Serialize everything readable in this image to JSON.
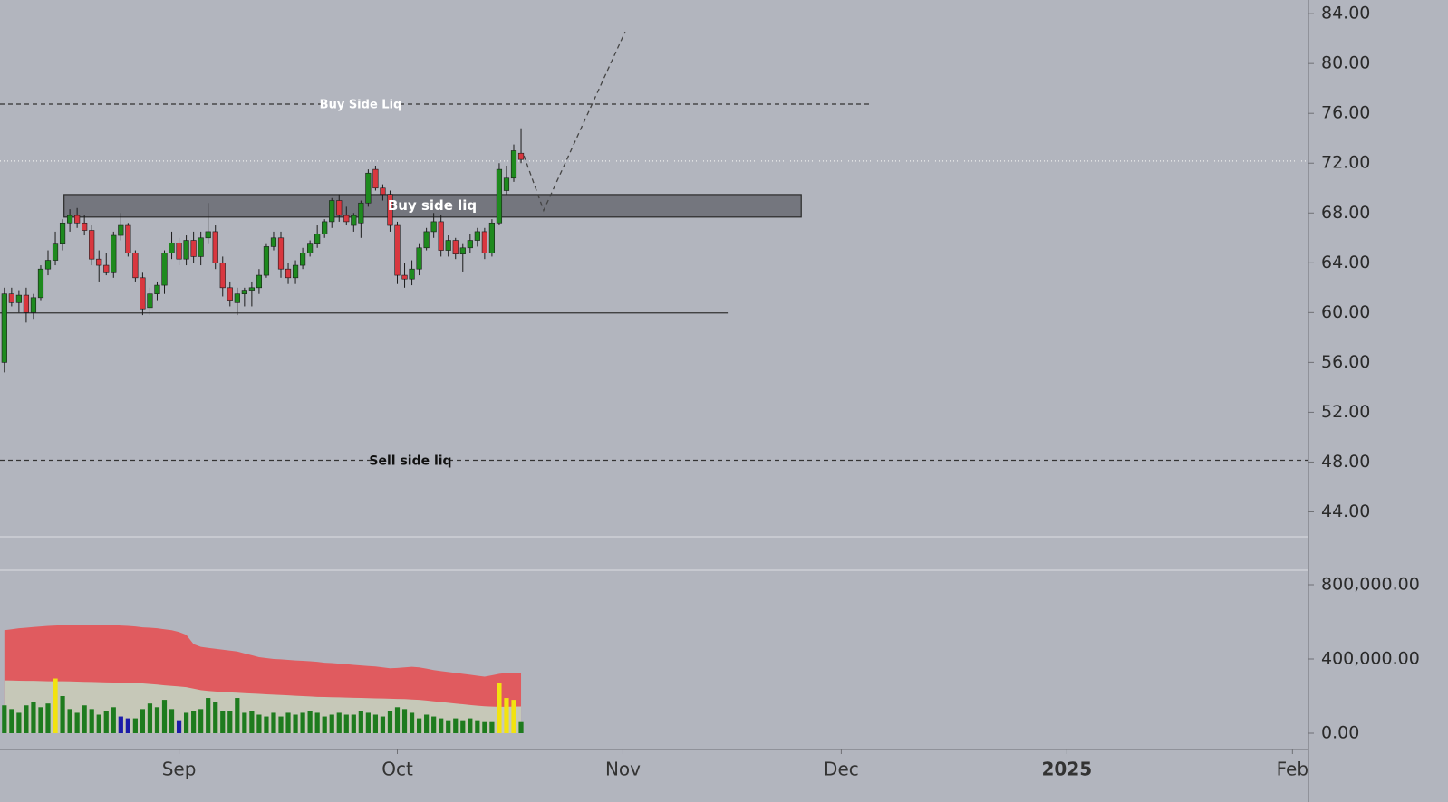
{
  "chart_data": [
    {
      "type": "candlestick",
      "up_color": "#1e8a1e",
      "down_color": "#d9373f",
      "xlim": [
        -0.6,
        179.2
      ],
      "xticks": [
        {
          "value": 24,
          "label": "Sep"
        },
        {
          "value": 54,
          "label": "Oct"
        },
        {
          "value": 85,
          "label": "Nov"
        },
        {
          "value": 115,
          "label": "Dec"
        },
        {
          "value": 146,
          "label": "2025"
        },
        {
          "value": 177,
          "label": "Feb"
        }
      ],
      "ylim": [
        42,
        85.1
      ],
      "yticks": [
        {
          "value": 84,
          "label": "84.00"
        },
        {
          "value": 80,
          "label": "80.00"
        },
        {
          "value": 76,
          "label": "76.00"
        },
        {
          "value": 72,
          "label": "72.00"
        },
        {
          "value": 68,
          "label": "68.00"
        },
        {
          "value": 64,
          "label": "64.00"
        },
        {
          "value": 60,
          "label": "60.00"
        },
        {
          "value": 56,
          "label": "56.00"
        },
        {
          "value": 52,
          "label": "52.00"
        },
        {
          "value": 48,
          "label": "48.00"
        },
        {
          "value": 44,
          "label": "44.00"
        }
      ],
      "open": [
        56,
        61.5,
        60.8,
        61.4,
        60,
        61.2,
        63.5,
        64.2,
        65.5,
        67.2,
        67.8,
        67.2,
        66.6,
        64.3,
        63.8,
        63.2,
        66.2,
        67,
        64.8,
        62.8,
        60.4,
        61.5,
        62.2,
        64.8,
        65.6,
        64.3,
        65.8,
        64.5,
        66,
        66.5,
        64,
        62,
        60.8,
        61.5,
        61.8,
        62,
        63,
        65.3,
        66,
        63.5,
        62.8,
        63.8,
        64.8,
        65.5,
        66.3,
        67.3,
        69,
        67.8,
        67,
        67.2,
        68.8,
        71.5,
        70,
        69.5,
        67,
        63,
        62.7,
        63.5,
        65.2,
        66.5,
        67.3,
        65,
        65.8,
        64.7,
        65.2,
        65.8,
        66.5,
        64.8,
        67.2,
        69.8,
        70.8,
        72.8
      ],
      "high": [
        62,
        62,
        61.8,
        62,
        61.5,
        63.8,
        65,
        66.5,
        67.5,
        68.3,
        68.4,
        67.8,
        67,
        65,
        64.8,
        66.5,
        68,
        67.2,
        65,
        63.2,
        62,
        62.5,
        65,
        66.5,
        66,
        66.2,
        66.5,
        66.5,
        68.8,
        67,
        64.5,
        62.5,
        62,
        62,
        62.5,
        63.5,
        65.5,
        66.5,
        66.5,
        64,
        64.2,
        65.2,
        65.8,
        67,
        67.5,
        69.2,
        69.5,
        68.5,
        68,
        69,
        71.5,
        71.8,
        70.3,
        69.8,
        67.3,
        64,
        64.2,
        65.5,
        66.8,
        68,
        67.8,
        66.2,
        66,
        65.5,
        66.3,
        66.8,
        66.8,
        67.5,
        72,
        71.8,
        73.5,
        74.8
      ],
      "low": [
        55.2,
        60.5,
        60,
        59.2,
        59.5,
        61,
        63,
        63.8,
        65,
        66.5,
        66.8,
        66.2,
        63.8,
        62.5,
        63,
        62.8,
        65.8,
        64.5,
        62.5,
        59.8,
        59.8,
        61,
        61.5,
        64.3,
        63.8,
        63.8,
        64,
        63.8,
        65.5,
        63.5,
        61.3,
        60.5,
        59.8,
        60.5,
        60.5,
        61.5,
        62.8,
        65,
        62.8,
        62.3,
        62.3,
        63.5,
        64.5,
        65.2,
        66,
        66.8,
        67.3,
        67,
        66.5,
        66,
        68.5,
        69.8,
        69,
        66.5,
        62.3,
        62,
        62.2,
        63,
        65,
        66,
        64.5,
        64.5,
        64.3,
        63.3,
        64.8,
        65.3,
        64.3,
        64.5,
        67,
        69.5,
        70.5,
        72
      ],
      "close": [
        61.5,
        60.8,
        61.4,
        60,
        61.2,
        63.5,
        64.2,
        65.5,
        67.2,
        67.8,
        67.2,
        66.6,
        64.3,
        63.8,
        63.2,
        66.2,
        67,
        64.8,
        62.8,
        60.3,
        61.5,
        62.2,
        64.8,
        65.6,
        64.3,
        65.8,
        64.5,
        66,
        66.5,
        64,
        62,
        61,
        61.5,
        61.8,
        62,
        63,
        65.3,
        66,
        63.5,
        62.8,
        63.8,
        64.8,
        65.5,
        66.3,
        67.3,
        69,
        67.8,
        67.3,
        67.8,
        68.8,
        71.2,
        70,
        69.5,
        67,
        63,
        62.7,
        63.5,
        65.2,
        66.5,
        67.3,
        65,
        65.8,
        64.7,
        65.2,
        65.8,
        66.5,
        64.8,
        67.2,
        71.5,
        70.8,
        73,
        72.3
      ],
      "lines": [
        {
          "label": "Buy Side Liq",
          "value": 76.74,
          "x": [
            -0.6,
            118.9
          ],
          "style": "dashed",
          "color": "#333333"
        },
        {
          "label": "Sell side liq",
          "value": 48.14,
          "x": [
            -0.6,
            179.2
          ],
          "style": "dashed",
          "color": "#333333"
        },
        {
          "value": 59.97,
          "x": [
            -0.6,
            99.4
          ],
          "style": "solid",
          "color": "#333333"
        },
        {
          "value": 72.17,
          "x": [
            -0.6,
            179.2
          ],
          "style": "dotted",
          "color": "#eeeeee"
        }
      ],
      "zone": {
        "label": "Buy side liq",
        "range": [
          67.67,
          69.48
        ],
        "x": [
          8.2,
          109.5
        ]
      },
      "projection": {
        "x": [
          71.4,
          74.1,
          85.3
        ],
        "y": [
          72.6,
          68.2,
          82.55
        ]
      }
    },
    {
      "type": "bar",
      "xlim": [
        -0.6,
        179.2
      ],
      "ylim": [
        -87800,
        878000
      ],
      "yticks": [
        {
          "value": 800000,
          "label": "800,000.00"
        },
        {
          "value": 400000,
          "label": "400,000.00"
        },
        {
          "value": 0,
          "label": "0.00"
        }
      ],
      "values": [
        150000,
        130000,
        110000,
        150000,
        170000,
        140000,
        160000,
        295000,
        200000,
        130000,
        110000,
        150000,
        130000,
        100000,
        120000,
        140000,
        90000,
        80000,
        80000,
        130000,
        160000,
        140000,
        180000,
        130000,
        70000,
        110000,
        120000,
        130000,
        190000,
        170000,
        120000,
        120000,
        190000,
        110000,
        120000,
        100000,
        90000,
        110000,
        90000,
        110000,
        100000,
        110000,
        120000,
        110000,
        90000,
        100000,
        110000,
        100000,
        100000,
        120000,
        110000,
        100000,
        90000,
        120000,
        140000,
        130000,
        110000,
        80000,
        100000,
        90000,
        80000,
        70000,
        80000,
        70000,
        80000,
        70000,
        60000,
        60000,
        270000,
        190000,
        180000,
        60000
      ],
      "colors": [
        "#1e7b1e",
        "#1e7b1e",
        "#1e7b1e",
        "#1e7b1e",
        "#1e7b1e",
        "#1e7b1e",
        "#1e7b1e",
        "#f2e30f",
        "#1e7b1e",
        "#1e7b1e",
        "#1e7b1e",
        "#1e7b1e",
        "#1e7b1e",
        "#1e7b1e",
        "#1e7b1e",
        "#1e7b1e",
        "#1c1ca8",
        "#1c1ca8",
        "#1e7b1e",
        "#1e7b1e",
        "#1e7b1e",
        "#1e7b1e",
        "#1e7b1e",
        "#1e7b1e",
        "#1c1ca8",
        "#1e7b1e",
        "#1e7b1e",
        "#1e7b1e",
        "#1e7b1e",
        "#1e7b1e",
        "#1e7b1e",
        "#1e7b1e",
        "#1e7b1e",
        "#1e7b1e",
        "#1e7b1e",
        "#1e7b1e",
        "#1e7b1e",
        "#1e7b1e",
        "#1e7b1e",
        "#1e7b1e",
        "#1e7b1e",
        "#1e7b1e",
        "#1e7b1e",
        "#1e7b1e",
        "#1e7b1e",
        "#1e7b1e",
        "#1e7b1e",
        "#1e7b1e",
        "#1e7b1e",
        "#1e7b1e",
        "#1e7b1e",
        "#1e7b1e",
        "#1e7b1e",
        "#1e7b1e",
        "#1e7b1e",
        "#1e7b1e",
        "#1e7b1e",
        "#1e7b1e",
        "#1e7b1e",
        "#1e7b1e",
        "#1e7b1e",
        "#1e7b1e",
        "#1e7b1e",
        "#1e7b1e",
        "#1e7b1e",
        "#1e7b1e",
        "#1e7b1e",
        "#1e7b1e",
        "#f2e30f",
        "#f2e30f",
        "#f2e30f",
        "#1e7b1e"
      ],
      "bands": [
        {
          "color": "#e05b5f",
          "values": [
            555000,
            560000,
            565000,
            568000,
            572000,
            575000,
            578000,
            580000,
            582000,
            584000,
            585000,
            585000,
            584000,
            584000,
            583000,
            582000,
            580000,
            578000,
            575000,
            570000,
            568000,
            565000,
            560000,
            555000,
            545000,
            530000,
            480000,
            465000,
            460000,
            455000,
            450000,
            445000,
            440000,
            430000,
            420000,
            410000,
            405000,
            400000,
            398000,
            395000,
            392000,
            390000,
            388000,
            385000,
            380000,
            378000,
            375000,
            372000,
            368000,
            365000,
            362000,
            360000,
            355000,
            350000,
            352000,
            355000,
            358000,
            355000,
            348000,
            340000,
            335000,
            330000,
            325000,
            320000,
            315000,
            310000,
            305000,
            312000,
            320000,
            325000,
            325000,
            322000
          ]
        },
        {
          "color": "#c6c8b8",
          "values": [
            285000,
            284000,
            283000,
            282000,
            282000,
            281000,
            280000,
            280000,
            280000,
            279000,
            278000,
            277000,
            276000,
            275000,
            274000,
            273000,
            272000,
            271000,
            270000,
            268000,
            265000,
            262000,
            258000,
            255000,
            252000,
            248000,
            240000,
            232000,
            228000,
            225000,
            222000,
            220000,
            218000,
            216000,
            214000,
            212000,
            210000,
            208000,
            206000,
            204000,
            202000,
            200000,
            198000,
            196000,
            195000,
            194000,
            193000,
            192000,
            191000,
            190000,
            189000,
            188000,
            187000,
            186000,
            185000,
            184000,
            182000,
            180000,
            176000,
            172000,
            168000,
            164000,
            160000,
            156000,
            152000,
            148000,
            145000,
            143000,
            142000,
            142000,
            143000,
            144000
          ]
        }
      ]
    }
  ]
}
